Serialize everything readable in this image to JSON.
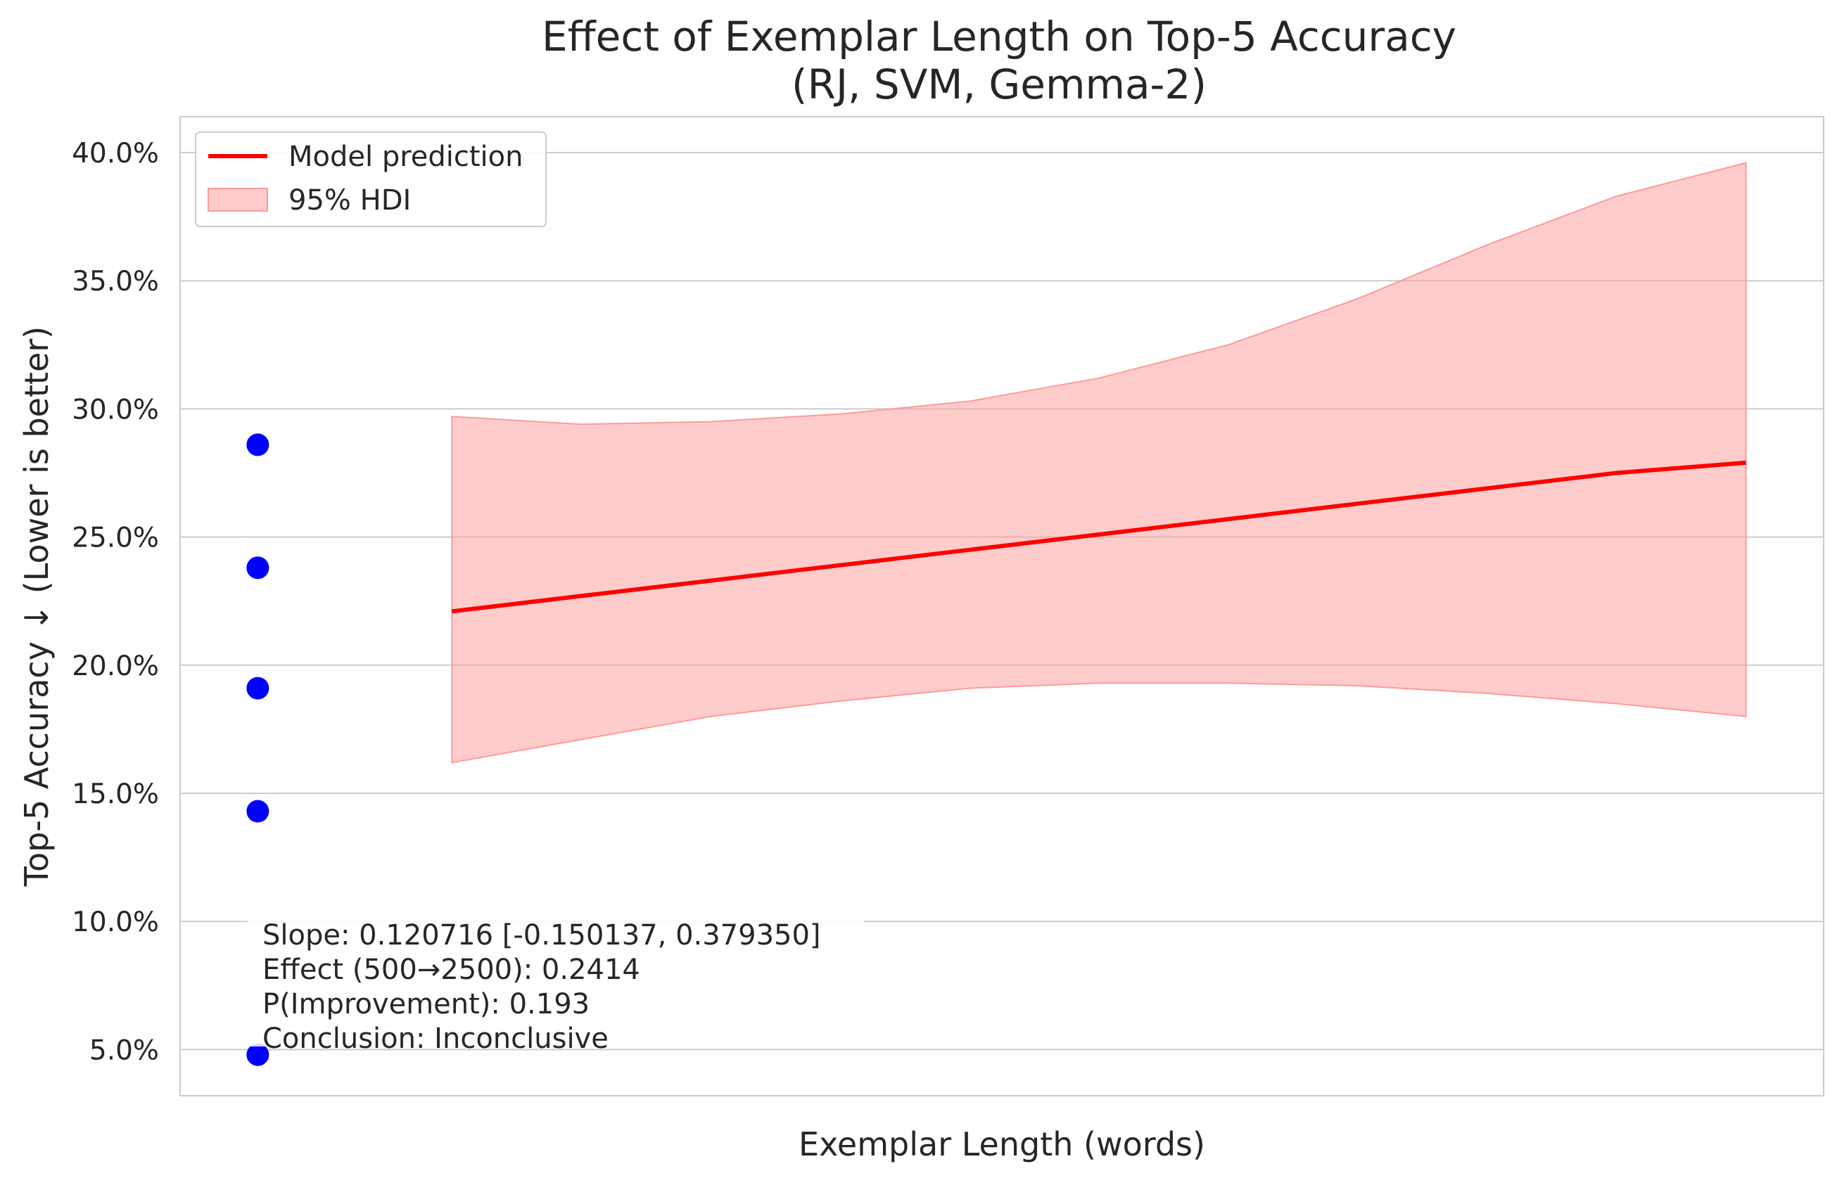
{
  "chart_data": {
    "type": "line",
    "title": "Effect of Exemplar Length on Top-5 Accuracy",
    "subtitle": "(RJ, SVM, Gemma-2)",
    "xlabel": "Exemplar Length (words)",
    "ylabel": "Top-5 Accuracy ↓ (Lower is better)",
    "x_ticks_shown": false,
    "ylim": [
      0.032,
      0.414
    ],
    "y_ticks": [
      0.05,
      0.1,
      0.15,
      0.2,
      0.25,
      0.3,
      0.35,
      0.4
    ],
    "y_tick_labels": [
      "5.0%",
      "10.0%",
      "15.0%",
      "20.0%",
      "25.0%",
      "30.0%",
      "35.0%",
      "40.0%"
    ],
    "grid": "horizontal",
    "legend_position": "top-left",
    "legend": [
      {
        "label": "Model prediction",
        "kind": "line",
        "color": "#ff0000"
      },
      {
        "label": "95% HDI",
        "kind": "band",
        "color": "#ff9999"
      }
    ],
    "observations": {
      "color": "#0000ff",
      "points": [
        {
          "x": 0,
          "y": 0.048
        },
        {
          "x": 0,
          "y": 0.143
        },
        {
          "x": 0,
          "y": 0.191
        },
        {
          "x": 0,
          "y": 0.238
        },
        {
          "x": 0,
          "y": 0.286
        }
      ]
    },
    "series": [
      {
        "name": "Model prediction",
        "color": "#ff0000",
        "x": [
          0.15,
          0.25,
          0.35,
          0.45,
          0.55,
          0.65,
          0.75,
          0.85,
          0.95,
          1.05,
          1.15
        ],
        "y": [
          0.221,
          0.227,
          0.233,
          0.239,
          0.245,
          0.251,
          0.257,
          0.263,
          0.269,
          0.275,
          0.279
        ]
      }
    ],
    "hdi": {
      "name": "95% HDI",
      "color": "#ff9999",
      "x": [
        0.15,
        0.25,
        0.35,
        0.45,
        0.55,
        0.65,
        0.75,
        0.85,
        0.95,
        1.05,
        1.15
      ],
      "lower": [
        0.162,
        0.171,
        0.18,
        0.186,
        0.191,
        0.193,
        0.193,
        0.192,
        0.189,
        0.185,
        0.18
      ],
      "upper": [
        0.297,
        0.294,
        0.295,
        0.298,
        0.303,
        0.312,
        0.325,
        0.343,
        0.364,
        0.383,
        0.396
      ]
    },
    "xlim": [
      -0.06,
      1.21
    ],
    "annotation": [
      "Slope: 0.120716 [-0.150137, 0.379350]",
      "Effect (500→2500): 0.2414",
      "P(Improvement): 0.193",
      "Conclusion: Inconclusive"
    ]
  }
}
